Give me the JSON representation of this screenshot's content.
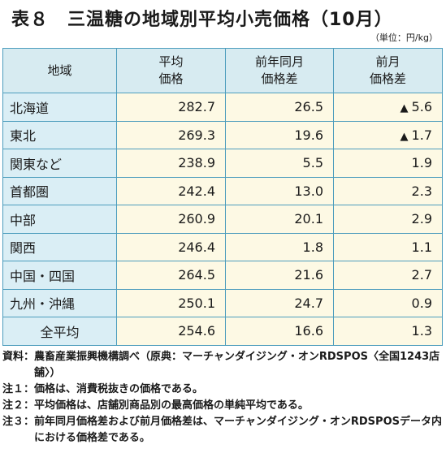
{
  "title": "表８　三温糖の地域別平均小売価格（10月）",
  "unit": "（単位：円/kg）",
  "columns": [
    [
      "地域"
    ],
    [
      "平均",
      "価格"
    ],
    [
      "前年同月",
      "価格差"
    ],
    [
      "前月",
      "価格差"
    ]
  ],
  "rows": [
    {
      "region": "北海道",
      "avg": "282.7",
      "yoy": "26.5",
      "mom_arrow": "▲",
      "mom": "5.6"
    },
    {
      "region": "東北",
      "avg": "269.3",
      "yoy": "19.6",
      "mom_arrow": "▲",
      "mom": "1.7"
    },
    {
      "region": "関東など",
      "avg": "238.9",
      "yoy": "5.5",
      "mom_arrow": "",
      "mom": "1.9"
    },
    {
      "region": "首都圏",
      "avg": "242.4",
      "yoy": "13.0",
      "mom_arrow": "",
      "mom": "2.3"
    },
    {
      "region": "中部",
      "avg": "260.9",
      "yoy": "20.1",
      "mom_arrow": "",
      "mom": "2.9"
    },
    {
      "region": "関西",
      "avg": "246.4",
      "yoy": "1.8",
      "mom_arrow": "",
      "mom": "1.1"
    },
    {
      "region": "中国・四国",
      "avg": "264.5",
      "yoy": "21.6",
      "mom_arrow": "",
      "mom": "2.7"
    },
    {
      "region": "九州・沖縄",
      "avg": "250.1",
      "yoy": "24.7",
      "mom_arrow": "",
      "mom": "0.9"
    },
    {
      "region": "全平均",
      "avg": "254.6",
      "yoy": "16.6",
      "mom_arrow": "",
      "mom": "1.3"
    }
  ],
  "notes": [
    {
      "label": "資料：",
      "text": "農畜産業振興機構調べ（原典：マーチャンダイジング・オンRDSPOS〈全国1243店舗〉）"
    },
    {
      "label": "注１：",
      "text": "価格は、消費税抜きの価格である。"
    },
    {
      "label": "注２：",
      "text": "平均価格は、店舗別商品別の最高価格の単純平均である。"
    },
    {
      "label": "注３：",
      "text": "前年同月価格差および前月価格差は、マーチャンダイジング・オンRDSPOSデータ内における価格差である。"
    }
  ],
  "colors": {
    "border": "#4d9dbd",
    "header_bg": "#d7ebf1",
    "region_bg": "#daeef5",
    "cell_bg": "#fdf9e4"
  }
}
